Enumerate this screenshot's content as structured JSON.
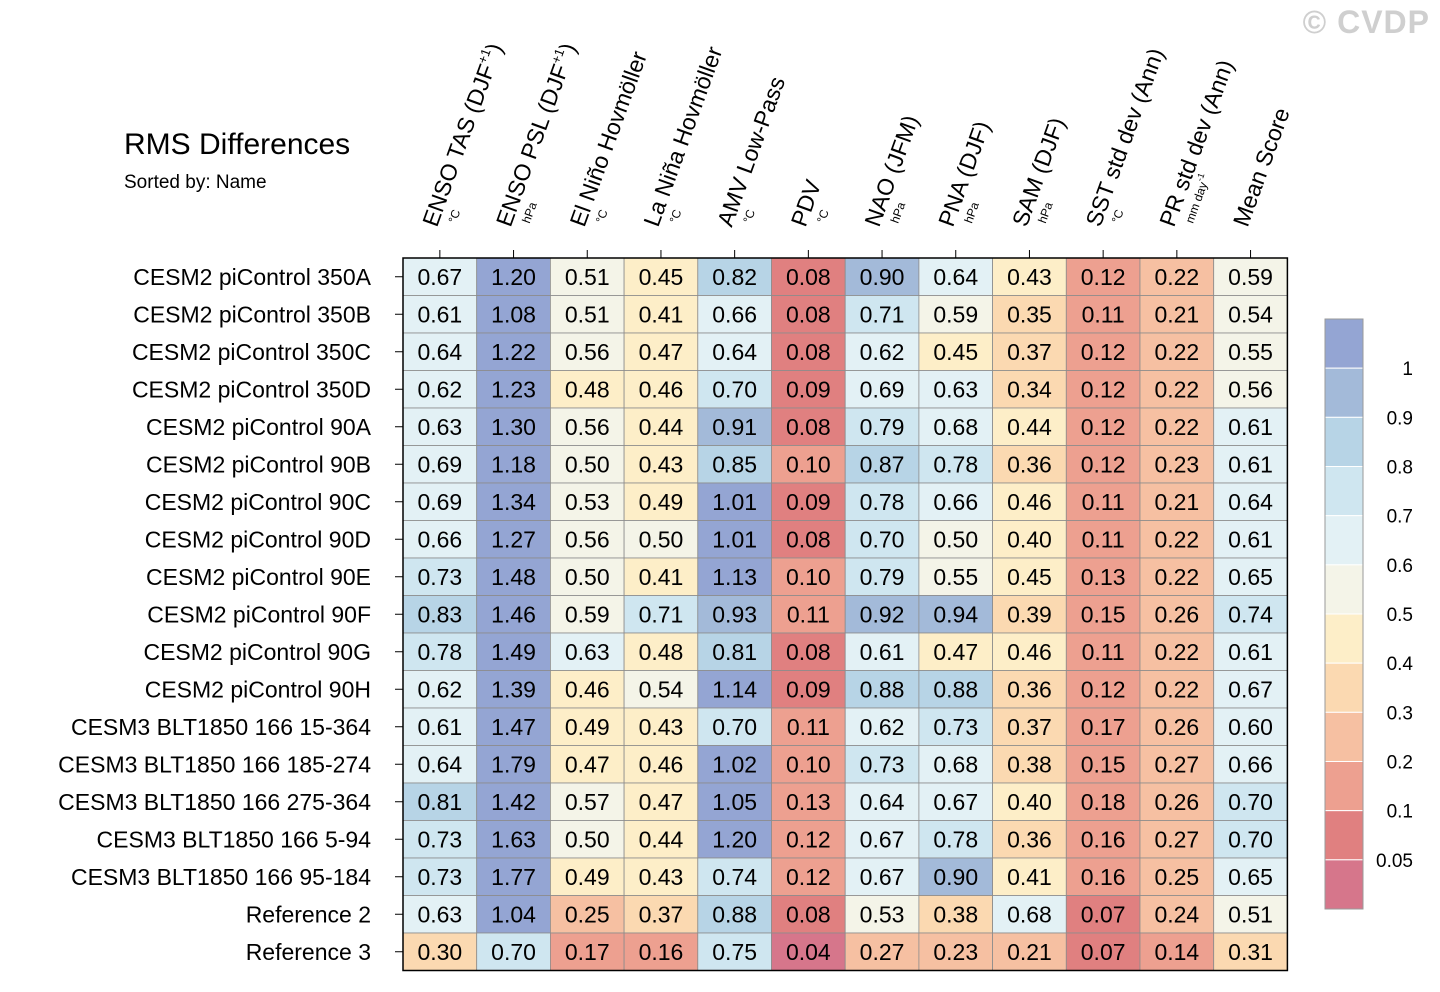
{
  "watermark": "© CVDP",
  "title": "RMS Differences",
  "subtitle": "Sorted by: Name",
  "chart_data": {
    "type": "heatmap",
    "title": "RMS Differences",
    "subtitle": "Sorted by: Name",
    "columns": [
      {
        "label": "ENSO TAS (DJF",
        "sup": "+1",
        "tail": ")",
        "unit": "°C"
      },
      {
        "label": "ENSO PSL (DJF",
        "sup": "+1",
        "tail": ")",
        "unit": "hPa"
      },
      {
        "label": "El Niño Hovmöller",
        "sup": "",
        "tail": "",
        "unit": "°C"
      },
      {
        "label": "La Niña Hovmöller",
        "sup": "",
        "tail": "",
        "unit": "°C"
      },
      {
        "label": "AMV Low-Pass",
        "sup": "",
        "tail": "",
        "unit": "°C"
      },
      {
        "label": "PDV",
        "sup": "",
        "tail": "",
        "unit": "°C"
      },
      {
        "label": "NAO (JFM)",
        "sup": "",
        "tail": "",
        "unit": "hPa"
      },
      {
        "label": "PNA (DJF)",
        "sup": "",
        "tail": "",
        "unit": "hPa"
      },
      {
        "label": "SAM (DJF)",
        "sup": "",
        "tail": "",
        "unit": "hPa"
      },
      {
        "label": "SST std dev (Ann)",
        "sup": "",
        "tail": "",
        "unit": "°C"
      },
      {
        "label": "PR std dev (Ann)",
        "sup": "",
        "tail": "",
        "unit": "mm day⁻¹"
      },
      {
        "label": "Mean Score",
        "sup": "",
        "tail": "",
        "unit": ""
      }
    ],
    "rows": [
      "CESM2 piControl 350A",
      "CESM2 piControl 350B",
      "CESM2 piControl 350C",
      "CESM2 piControl 350D",
      "CESM2 piControl 90A",
      "CESM2 piControl 90B",
      "CESM2 piControl 90C",
      "CESM2 piControl 90D",
      "CESM2 piControl 90E",
      "CESM2 piControl 90F",
      "CESM2 piControl 90G",
      "CESM2 piControl 90H",
      "CESM3 BLT1850 166 15-364",
      "CESM3 BLT1850 166 185-274",
      "CESM3 BLT1850 166 275-364",
      "CESM3 BLT1850 166 5-94",
      "CESM3 BLT1850 166 95-184",
      "Reference 2",
      "Reference 3"
    ],
    "values": [
      [
        "0.67",
        "1.20",
        "0.51",
        "0.45",
        "0.82",
        "0.08",
        "0.90",
        "0.64",
        "0.43",
        "0.12",
        "0.22",
        "0.59"
      ],
      [
        "0.61",
        "1.08",
        "0.51",
        "0.41",
        "0.66",
        "0.08",
        "0.71",
        "0.59",
        "0.35",
        "0.11",
        "0.21",
        "0.54"
      ],
      [
        "0.64",
        "1.22",
        "0.56",
        "0.47",
        "0.64",
        "0.08",
        "0.62",
        "0.45",
        "0.37",
        "0.12",
        "0.22",
        "0.55"
      ],
      [
        "0.62",
        "1.23",
        "0.48",
        "0.46",
        "0.70",
        "0.09",
        "0.69",
        "0.63",
        "0.34",
        "0.12",
        "0.22",
        "0.56"
      ],
      [
        "0.63",
        "1.30",
        "0.56",
        "0.44",
        "0.91",
        "0.08",
        "0.79",
        "0.68",
        "0.44",
        "0.12",
        "0.22",
        "0.61"
      ],
      [
        "0.69",
        "1.18",
        "0.50",
        "0.43",
        "0.85",
        "0.10",
        "0.87",
        "0.78",
        "0.36",
        "0.12",
        "0.23",
        "0.61"
      ],
      [
        "0.69",
        "1.34",
        "0.53",
        "0.49",
        "1.01",
        "0.09",
        "0.78",
        "0.66",
        "0.46",
        "0.11",
        "0.21",
        "0.64"
      ],
      [
        "0.66",
        "1.27",
        "0.56",
        "0.50",
        "1.01",
        "0.08",
        "0.70",
        "0.50",
        "0.40",
        "0.11",
        "0.22",
        "0.61"
      ],
      [
        "0.73",
        "1.48",
        "0.50",
        "0.41",
        "1.13",
        "0.10",
        "0.79",
        "0.55",
        "0.45",
        "0.13",
        "0.22",
        "0.65"
      ],
      [
        "0.83",
        "1.46",
        "0.59",
        "0.71",
        "0.93",
        "0.11",
        "0.92",
        "0.94",
        "0.39",
        "0.15",
        "0.26",
        "0.74"
      ],
      [
        "0.78",
        "1.49",
        "0.63",
        "0.48",
        "0.81",
        "0.08",
        "0.61",
        "0.47",
        "0.46",
        "0.11",
        "0.22",
        "0.61"
      ],
      [
        "0.62",
        "1.39",
        "0.46",
        "0.54",
        "1.14",
        "0.09",
        "0.88",
        "0.88",
        "0.36",
        "0.12",
        "0.22",
        "0.67"
      ],
      [
        "0.61",
        "1.47",
        "0.49",
        "0.43",
        "0.70",
        "0.11",
        "0.62",
        "0.73",
        "0.37",
        "0.17",
        "0.26",
        "0.60"
      ],
      [
        "0.64",
        "1.79",
        "0.47",
        "0.46",
        "1.02",
        "0.10",
        "0.73",
        "0.68",
        "0.38",
        "0.15",
        "0.27",
        "0.66"
      ],
      [
        "0.81",
        "1.42",
        "0.57",
        "0.47",
        "1.05",
        "0.13",
        "0.64",
        "0.67",
        "0.40",
        "0.18",
        "0.26",
        "0.70"
      ],
      [
        "0.73",
        "1.63",
        "0.50",
        "0.44",
        "1.20",
        "0.12",
        "0.67",
        "0.78",
        "0.36",
        "0.16",
        "0.27",
        "0.70"
      ],
      [
        "0.73",
        "1.77",
        "0.49",
        "0.43",
        "0.74",
        "0.12",
        "0.67",
        "0.90",
        "0.41",
        "0.16",
        "0.25",
        "0.65"
      ],
      [
        "0.63",
        "1.04",
        "0.25",
        "0.37",
        "0.88",
        "0.08",
        "0.53",
        "0.38",
        "0.68",
        "0.07",
        "0.24",
        "0.51"
      ],
      [
        "0.30",
        "0.70",
        "0.17",
        "0.16",
        "0.75",
        "0.04",
        "0.27",
        "0.23",
        "0.21",
        "0.07",
        "0.14",
        "0.31"
      ]
    ],
    "colorbar": {
      "levels": [
        0.05,
        0.1,
        0.2,
        0.3,
        0.4,
        0.5,
        0.6,
        0.7,
        0.8,
        0.9,
        1
      ],
      "labels": [
        "0.05",
        "0.1",
        "0.2",
        "0.3",
        "0.4",
        "0.5",
        "0.6",
        "0.7",
        "0.8",
        "0.9",
        "1"
      ],
      "colors": [
        "#d6768b",
        "#e08080",
        "#eda090",
        "#f6c0a2",
        "#fbd9b1",
        "#fdeec8",
        "#f4f4e8",
        "#e3f1f5",
        "#cfe6f0",
        "#b7d4e6",
        "#a3bad9",
        "#94a5d3"
      ]
    }
  }
}
